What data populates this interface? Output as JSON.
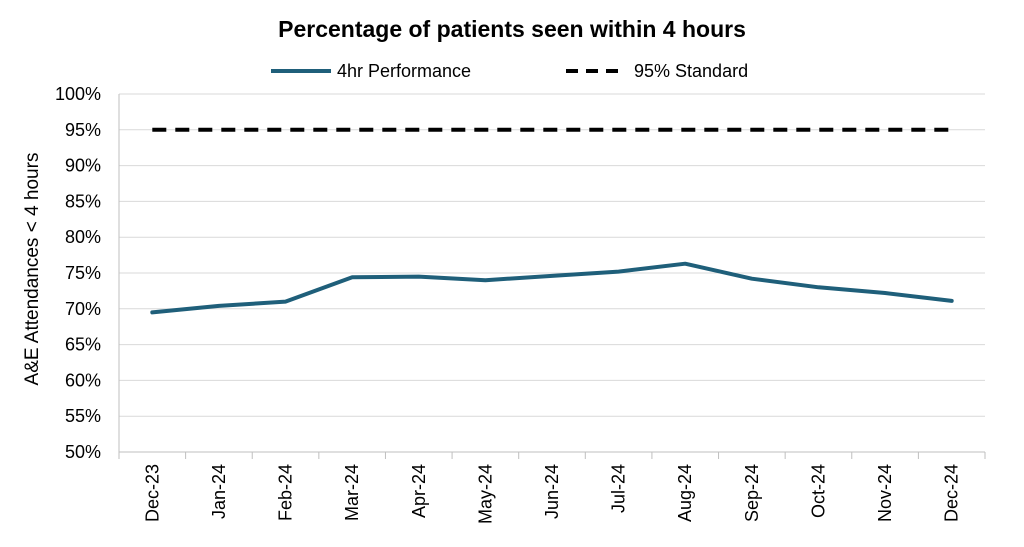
{
  "chart_data": {
    "type": "line",
    "title": "Percentage of patients seen within 4 hours",
    "xlabel": "",
    "ylabel": "A&E Attendances < 4 hours",
    "categories": [
      "Dec-23",
      "Jan-24",
      "Feb-24",
      "Mar-24",
      "Apr-24",
      "May-24",
      "Jun-24",
      "Jul-24",
      "Aug-24",
      "Sep-24",
      "Oct-24",
      "Nov-24",
      "Dec-24"
    ],
    "ylim": [
      50,
      100
    ],
    "yticks": [
      50,
      55,
      60,
      65,
      70,
      75,
      80,
      85,
      90,
      95,
      100
    ],
    "ytick_labels": [
      "50%",
      "55%",
      "60%",
      "65%",
      "70%",
      "75%",
      "80%",
      "85%",
      "90%",
      "95%",
      "100%"
    ],
    "grid": "horizontal",
    "legend": "top-center",
    "series": [
      {
        "name": "4hr Performance",
        "color": "#1f5f7a",
        "style": "solid",
        "values": [
          69.5,
          70.4,
          71.0,
          74.4,
          74.5,
          74.0,
          74.6,
          75.2,
          76.3,
          74.2,
          73.0,
          72.2,
          71.1
        ]
      },
      {
        "name": "95% Standard",
        "color": "#000000",
        "style": "dashed",
        "values": [
          95,
          95,
          95,
          95,
          95,
          95,
          95,
          95,
          95,
          95,
          95,
          95,
          95
        ]
      }
    ]
  }
}
